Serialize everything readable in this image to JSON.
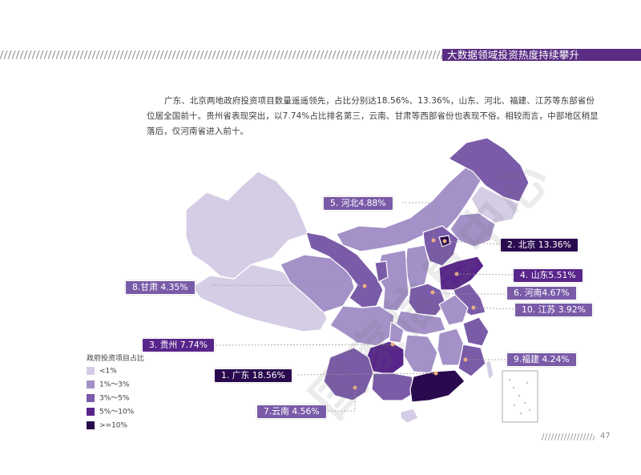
{
  "header": {
    "title": "大数据领域投资热度持续攀升",
    "accent_color": "#5a2d83"
  },
  "intro": {
    "text": "广东、北京两地政府投资项目数量遥遥领先，占比分别达18.56%、13.36%，山东、河北、福建、江苏等东部省份位居全国前十。贵州省表现突出，以7.74%占比排名第三，云南、甘肃等西部省份也表现不俗。相较而言，中部地区稍显落后，仅河南省进入前十。"
  },
  "legend": {
    "title": "政府投资项目占比",
    "items": [
      {
        "label": "<1%",
        "color": "#d5cde5"
      },
      {
        "label": "1%～3%",
        "color": "#a391c7"
      },
      {
        "label": "3%～5%",
        "color": "#7a5ba8"
      },
      {
        "label": "5%～10%",
        "color": "#58258a"
      },
      {
        "label": ">=10%",
        "color": "#2a0a4e"
      }
    ]
  },
  "callouts": [
    {
      "label": "1. 广东 18.56%",
      "province": "广东",
      "value": 18.56,
      "color": "#2a0a4e"
    },
    {
      "label": "2. 北京 13.36%",
      "province": "北京",
      "value": 13.36,
      "color": "#2a0a4e"
    },
    {
      "label": "3. 贵州 7.74%",
      "province": "贵州",
      "value": 7.74,
      "color": "#58258a"
    },
    {
      "label": "4. 山东5.51%",
      "province": "山东",
      "value": 5.51,
      "color": "#58258a"
    },
    {
      "label": "5. 河北4.88%",
      "province": "河北",
      "value": 4.88,
      "color": "#7a5ba8"
    },
    {
      "label": "6. 河南4.67%",
      "province": "河南",
      "value": 4.67,
      "color": "#7a5ba8"
    },
    {
      "label": "7.云南 4.56%",
      "province": "云南",
      "value": 4.56,
      "color": "#7a5ba8"
    },
    {
      "label": "8.甘肃 4.35%",
      "province": "甘肃",
      "value": 4.35,
      "color": "#7a5ba8"
    },
    {
      "label": "9.福建 4.24%",
      "province": "福建",
      "value": 4.24,
      "color": "#7a5ba8"
    },
    {
      "label": "10. 江苏 3.92%",
      "province": "江苏",
      "value": 3.92,
      "color": "#7a5ba8"
    }
  ],
  "watermark": "国家信息中心",
  "page_number": "47"
}
